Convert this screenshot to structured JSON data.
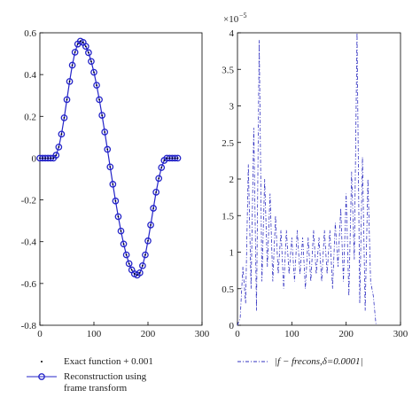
{
  "chart_data": [
    {
      "type": "line",
      "x": [
        0,
        5,
        10,
        15,
        20,
        25,
        30,
        35,
        40,
        45,
        50,
        55,
        60,
        65,
        70,
        75,
        80,
        85,
        90,
        95,
        100,
        105,
        110,
        115,
        120,
        125,
        130,
        135,
        140,
        145,
        150,
        155,
        160,
        165,
        170,
        175,
        180,
        185,
        190,
        195,
        200,
        205,
        210,
        215,
        220,
        225,
        230,
        235,
        240,
        245,
        250,
        255
      ],
      "series": [
        {
          "name": "Exact function + 0.001",
          "color": "#000000",
          "marker": "dot",
          "line": "none",
          "values": [
            0,
            0,
            0,
            0,
            0,
            0,
            0.014,
            0.053,
            0.115,
            0.193,
            0.28,
            0.367,
            0.445,
            0.507,
            0.546,
            0.56,
            0.554,
            0.535,
            0.505,
            0.463,
            0.411,
            0.349,
            0.28,
            0.205,
            0.125,
            0.042,
            -0.042,
            -0.125,
            -0.205,
            -0.28,
            -0.349,
            -0.411,
            -0.463,
            -0.505,
            -0.535,
            -0.554,
            -0.56,
            -0.549,
            -0.515,
            -0.463,
            -0.396,
            -0.32,
            -0.24,
            -0.163,
            -0.097,
            -0.045,
            -0.011,
            0,
            0,
            0,
            0,
            0
          ]
        },
        {
          "name": "Reconstruction using frame transform",
          "color": "#2424c8",
          "marker": "circle",
          "line": "solid",
          "values": [
            0,
            0,
            0,
            0,
            0,
            0,
            0.014,
            0.053,
            0.115,
            0.193,
            0.28,
            0.367,
            0.445,
            0.507,
            0.546,
            0.56,
            0.554,
            0.535,
            0.505,
            0.463,
            0.411,
            0.349,
            0.28,
            0.205,
            0.125,
            0.042,
            -0.042,
            -0.125,
            -0.205,
            -0.28,
            -0.349,
            -0.411,
            -0.463,
            -0.505,
            -0.535,
            -0.554,
            -0.56,
            -0.549,
            -0.515,
            -0.463,
            -0.396,
            -0.32,
            -0.24,
            -0.163,
            -0.097,
            -0.045,
            -0.011,
            0,
            0,
            0,
            0,
            0
          ]
        }
      ],
      "xlim": [
        0,
        300
      ],
      "xticks": [
        0,
        100,
        200,
        300
      ],
      "ylim": [
        -0.8,
        0.6
      ],
      "yticks": [
        -0.8,
        -0.6,
        -0.4,
        -0.2,
        0,
        0.2,
        0.4,
        0.6
      ]
    },
    {
      "type": "line",
      "x": [
        0,
        5,
        10,
        15,
        20,
        25,
        30,
        35,
        40,
        45,
        50,
        55,
        60,
        65,
        70,
        75,
        80,
        85,
        90,
        95,
        100,
        105,
        110,
        115,
        120,
        125,
        130,
        135,
        140,
        145,
        150,
        155,
        160,
        165,
        170,
        175,
        180,
        185,
        190,
        195,
        200,
        205,
        210,
        215,
        220,
        225,
        230,
        235,
        240,
        245,
        250,
        255
      ],
      "series": [
        {
          "name": "|f − frecons,δ=0.0001|",
          "color": "#3030c0",
          "marker": "none",
          "line": "dashdot",
          "values": [
            0,
            0.1,
            0.8,
            0.3,
            2.2,
            0.5,
            2.7,
            0.2,
            3.9,
            0.6,
            2.0,
            0.8,
            1.8,
            0.6,
            1.5,
            0.7,
            1.3,
            0.5,
            1.3,
            0.7,
            1.2,
            0.6,
            1.3,
            0.7,
            1.2,
            0.5,
            1.2,
            0.6,
            1.3,
            0.7,
            1.2,
            0.6,
            1.3,
            0.7,
            1.3,
            0.5,
            1.4,
            0.8,
            1.6,
            0.6,
            1.8,
            0.4,
            2.1,
            0.9,
            4.0,
            0.3,
            2.3,
            0.2,
            2.0,
            0.6,
            0.4,
            0
          ]
        }
      ],
      "y_multiplier": {
        "base": "×10",
        "exponent": "−5"
      },
      "xlim": [
        0,
        300
      ],
      "xticks": [
        0,
        100,
        200,
        300
      ],
      "ylim": [
        0,
        4
      ],
      "yticks": [
        0,
        0.5,
        1,
        1.5,
        2,
        2.5,
        3,
        3.5,
        4
      ]
    }
  ]
}
